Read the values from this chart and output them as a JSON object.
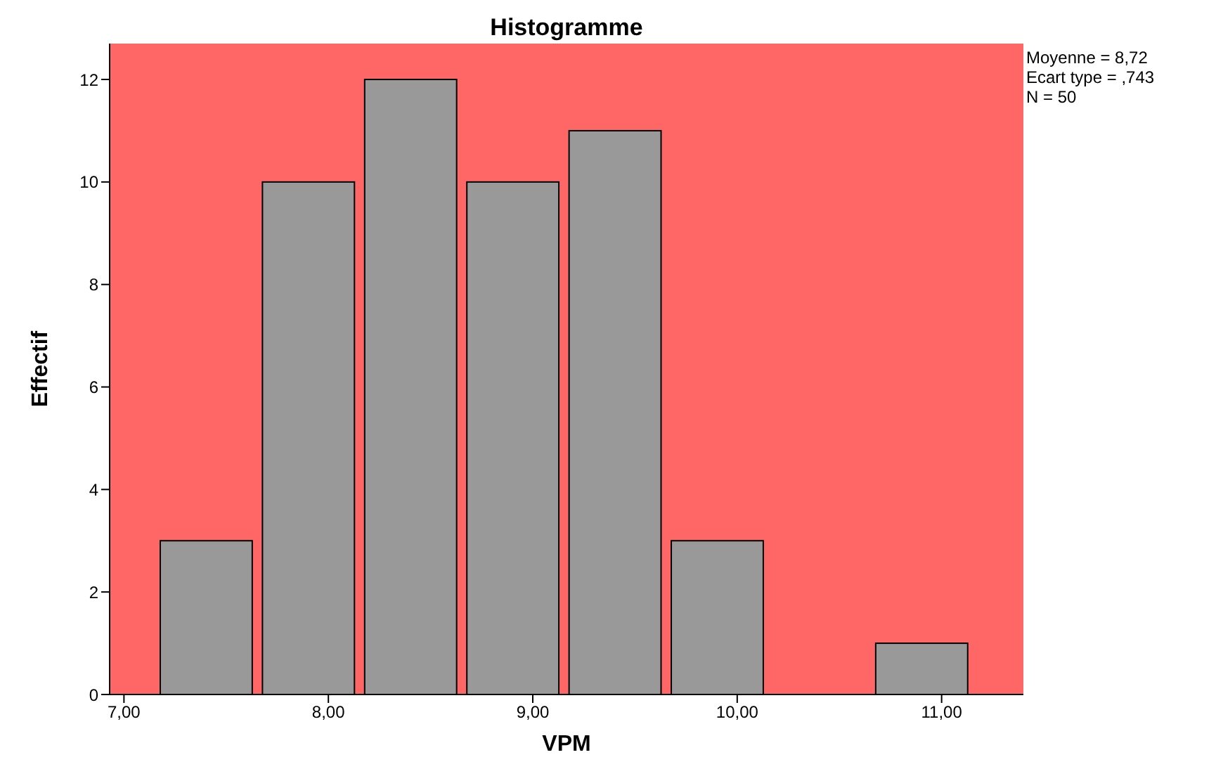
{
  "chart_data": {
    "type": "histogram",
    "title": "Histogramme",
    "xlabel": "VPM",
    "ylabel": "Effectif",
    "bins": [
      7.15,
      7.65,
      8.15,
      8.65,
      9.15,
      9.65,
      10.15,
      10.65,
      11.15
    ],
    "values": [
      3,
      10,
      12,
      10,
      11,
      3,
      0,
      1
    ],
    "color": "#999999",
    "xlim": [
      6.93,
      11.4
    ],
    "xticks": [
      {
        "value": 7,
        "label": "7,00"
      },
      {
        "value": 8,
        "label": "8,00"
      },
      {
        "value": 9,
        "label": "9,00"
      },
      {
        "value": 10,
        "label": "10,00"
      },
      {
        "value": 11,
        "label": "11,00"
      }
    ],
    "ylim": [
      0,
      12.7
    ],
    "yticks": [
      0,
      2,
      4,
      6,
      8,
      10,
      12
    ],
    "annotations": [
      "Moyenne = 8,72",
      "Ecart type = ,743",
      "N = 50"
    ],
    "grid": false,
    "legend": false
  }
}
